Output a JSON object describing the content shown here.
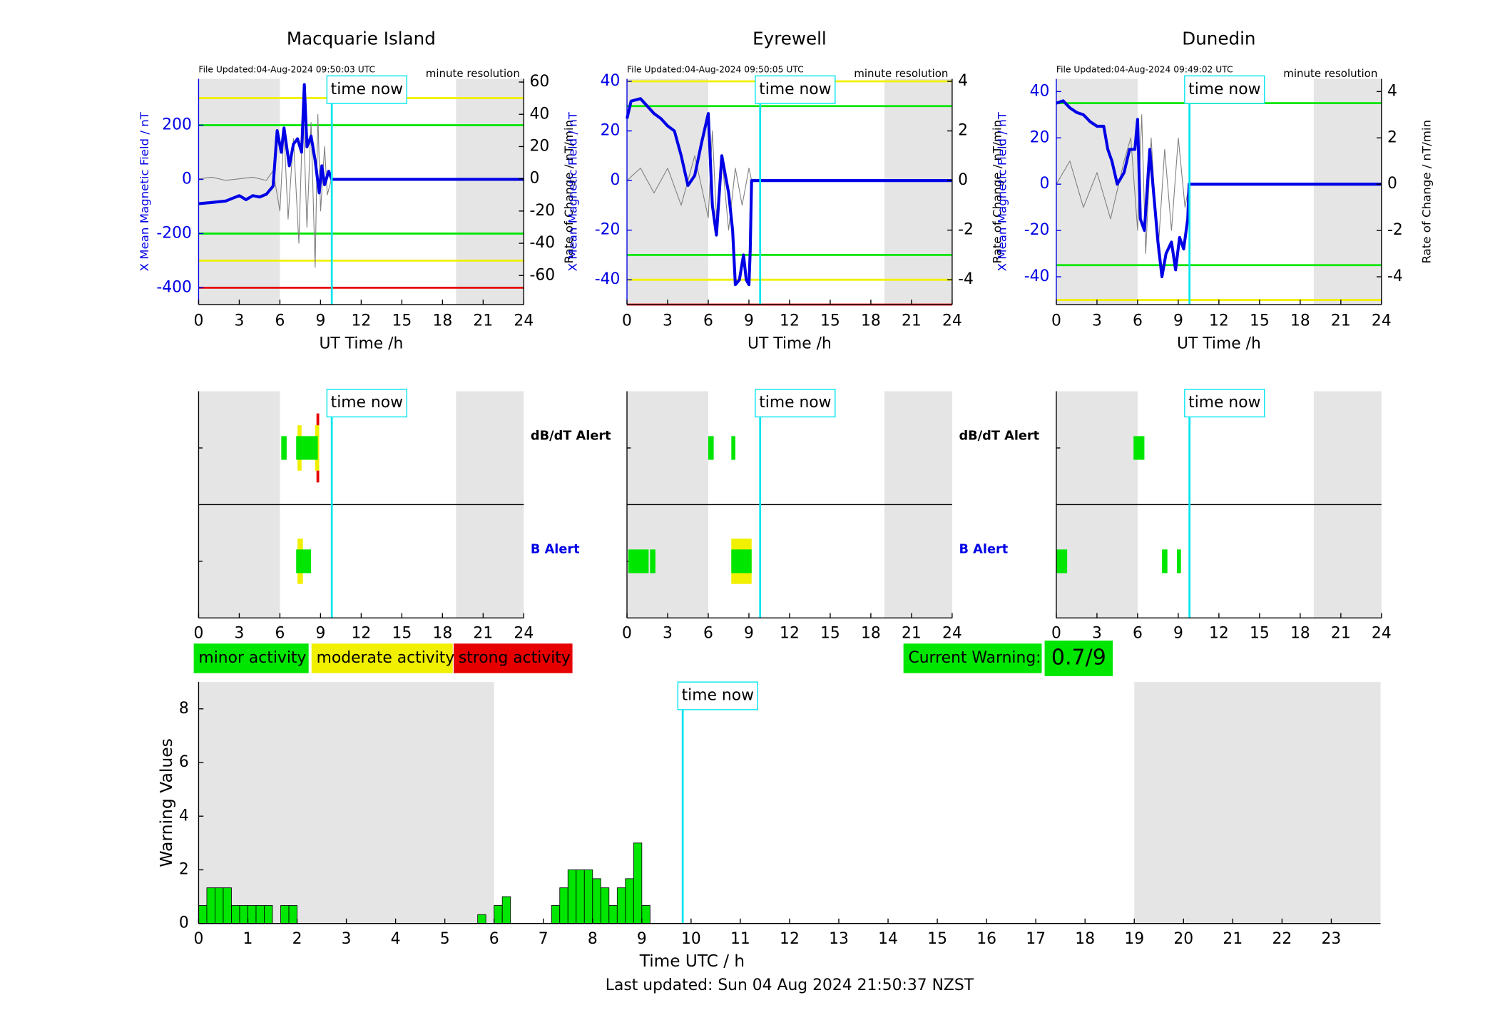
{
  "chart_data": [
    {
      "type": "line",
      "title": "Macquarie Island",
      "file_updated": "File Updated:04-Aug-2024 09:50:03 UTC",
      "resolution": "minute resolution",
      "xlabel": "UT Time /h",
      "ylabel": "X Mean Magnetic Field / nT",
      "y2label": "Rate of Change / nT/min",
      "xlim": [
        0,
        24
      ],
      "xticks": [
        0,
        3,
        6,
        9,
        12,
        15,
        18,
        21,
        24
      ],
      "ylim": [
        -462,
        371
      ],
      "yticks": [
        -400,
        -200,
        0,
        200
      ],
      "y2lim": [
        -78,
        62
      ],
      "y2ticks": [
        -60,
        -40,
        -20,
        0,
        20,
        40,
        60
      ],
      "night": [
        [
          0,
          6
        ],
        [
          19,
          24
        ]
      ],
      "time_now": {
        "label": "time now",
        "value": 9.83
      },
      "thresholds": [
        {
          "value": 300,
          "color": "#f0f000"
        },
        {
          "value": 200,
          "color": "#00e600"
        },
        {
          "value": -200,
          "color": "#00e600"
        },
        {
          "value": -300,
          "color": "#f0f000"
        },
        {
          "value": -400,
          "color": "#e60000"
        }
      ],
      "series": [
        {
          "color": "#808080",
          "axis": "y2",
          "x": [
            0,
            1,
            2,
            3,
            4,
            5,
            5.5,
            6,
            6.3,
            6.6,
            7,
            7.4,
            7.7,
            8,
            8.3,
            8.6,
            8.8,
            9,
            9.3,
            9.5,
            9.8
          ],
          "values": [
            0,
            1,
            -1,
            0,
            1,
            -1,
            5,
            -20,
            30,
            -25,
            25,
            -40,
            45,
            -30,
            35,
            -55,
            40,
            -20,
            20,
            -10,
            0
          ]
        },
        {
          "color": "#0000e6",
          "x": [
            0,
            1,
            2,
            2.5,
            3,
            3.5,
            4,
            4.5,
            5,
            5.5,
            5.8,
            6.1,
            6.3,
            6.7,
            7,
            7.3,
            7.6,
            7.8,
            8,
            8.3,
            8.6,
            8.9,
            9.1,
            9.3,
            9.6,
            9.83,
            24
          ],
          "values": [
            -90,
            -85,
            -80,
            -70,
            -60,
            -75,
            -60,
            -65,
            -55,
            -25,
            180,
            100,
            190,
            50,
            130,
            150,
            100,
            350,
            120,
            160,
            70,
            -50,
            50,
            -20,
            30,
            0,
            0
          ]
        }
      ]
    },
    {
      "type": "line",
      "title": "Eyrewell",
      "file_updated": "File Updated:04-Aug-2024 09:50:05 UTC",
      "resolution": "minute resolution",
      "xlabel": "UT Time /h",
      "ylabel": "X Mean Magnetic Field / nT",
      "y2label": "Rate of Change / nT/min",
      "xlim": [
        0,
        24
      ],
      "xticks": [
        0,
        3,
        6,
        9,
        12,
        15,
        18,
        21,
        24
      ],
      "ylim": [
        -50,
        41
      ],
      "yticks": [
        -40,
        -20,
        0,
        20,
        40
      ],
      "y2lim": [
        -5,
        4.1
      ],
      "y2ticks": [
        -4,
        -2,
        0,
        2,
        4
      ],
      "night": [
        [
          0,
          6
        ],
        [
          19,
          24
        ]
      ],
      "time_now": {
        "label": "time now",
        "value": 9.83
      },
      "thresholds": [
        {
          "value": 40,
          "color": "#f0f000"
        },
        {
          "value": 30,
          "color": "#00e600"
        },
        {
          "value": -30,
          "color": "#00e600"
        },
        {
          "value": -40,
          "color": "#f0f000"
        },
        {
          "value": -50,
          "color": "#e60000"
        }
      ],
      "series": [
        {
          "color": "#808080",
          "axis": "y2",
          "x": [
            0,
            1,
            2,
            3,
            4,
            5,
            6,
            6.3,
            6.6,
            7,
            7.5,
            8,
            8.5,
            9,
            9.2
          ],
          "values": [
            0,
            0.5,
            -0.5,
            0.5,
            -1,
            1,
            -1.5,
            2,
            -1.5,
            1,
            -2,
            0.5,
            -1,
            0.5,
            0
          ]
        },
        {
          "color": "#0000e6",
          "x": [
            0,
            0.3,
            1,
            1.5,
            2,
            2.5,
            3,
            3.5,
            4,
            4.5,
            5,
            5.5,
            6,
            6.3,
            6.6,
            7,
            7.5,
            7.8,
            8,
            8.3,
            8.6,
            8.8,
            9,
            9.1,
            9.2,
            24
          ],
          "values": [
            25,
            32,
            33,
            30,
            27,
            25,
            22,
            20,
            10,
            -2,
            2,
            15,
            27,
            -10,
            -22,
            10,
            -5,
            -20,
            -42,
            -40,
            -30,
            -40,
            -42,
            -28,
            0,
            0
          ]
        }
      ]
    },
    {
      "type": "line",
      "title": "Dunedin",
      "file_updated": "File Updated:04-Aug-2024 09:49:02 UTC",
      "resolution": "minute resolution",
      "xlabel": "UT Time /h",
      "ylabel": "X Mean Magnetic Field / nT",
      "y2label": "Rate of Change / nT/min",
      "xlim": [
        0,
        24
      ],
      "xticks": [
        0,
        3,
        6,
        9,
        12,
        15,
        18,
        21,
        24
      ],
      "ylim": [
        -52,
        45.5
      ],
      "yticks": [
        -40,
        -20,
        0,
        20,
        40
      ],
      "y2lim": [
        -5.2,
        4.55
      ],
      "y2ticks": [
        -4,
        -2,
        0,
        2,
        4
      ],
      "night": [
        [
          0,
          6
        ],
        [
          19,
          24
        ]
      ],
      "time_now": {
        "label": "time now",
        "value": 9.83
      },
      "thresholds": [
        {
          "value": 35,
          "color": "#00e600"
        },
        {
          "value": -35,
          "color": "#00e600"
        },
        {
          "value": -50,
          "color": "#f0f000"
        }
      ],
      "series": [
        {
          "color": "#808080",
          "axis": "y2",
          "x": [
            0,
            1,
            2,
            3,
            4,
            5,
            5.5,
            6,
            6.3,
            6.6,
            7,
            7.5,
            8,
            8.5,
            9,
            9.5,
            9.8
          ],
          "values": [
            0,
            1,
            -1,
            0.5,
            -1.5,
            1,
            2,
            -2,
            3,
            -3,
            2,
            -3,
            1.5,
            -2,
            2,
            -1,
            0
          ]
        },
        {
          "color": "#0000e6",
          "x": [
            0,
            0.5,
            1,
            1.5,
            2,
            2.5,
            3,
            3.5,
            3.8,
            4.1,
            4.5,
            5,
            5.4,
            5.8,
            6,
            6.2,
            6.5,
            6.9,
            7.2,
            7.5,
            7.8,
            8.1,
            8.5,
            8.8,
            9.1,
            9.4,
            9.7,
            9.8,
            24
          ],
          "values": [
            35,
            36,
            33,
            31,
            30,
            27,
            25,
            25,
            15,
            10,
            0,
            5,
            15,
            15,
            28,
            -15,
            -20,
            15,
            -5,
            -25,
            -40,
            -30,
            -25,
            -37,
            -23,
            -28,
            -15,
            0,
            0
          ]
        }
      ]
    },
    {
      "type": "alert",
      "xlim": [
        0,
        24
      ],
      "xticks": [
        0,
        3,
        6,
        9,
        12,
        15,
        18,
        21,
        24
      ],
      "night": [
        [
          0,
          6
        ],
        [
          19,
          24
        ]
      ],
      "time_now": {
        "label": "time now",
        "value": 9.83
      },
      "rows": [
        {
          "name": "dB/dT Alert",
          "name_color": "#000000",
          "segments": [
            {
              "start": 8.7,
              "end": 8.9,
              "level": 2
            },
            {
              "start": 7.3,
              "end": 7.6,
              "level": 1
            },
            {
              "start": 8.6,
              "end": 8.9,
              "level": 1
            },
            {
              "start": 6.1,
              "end": 6.5,
              "level": 0
            },
            {
              "start": 7.2,
              "end": 8.8,
              "level": 0
            }
          ]
        },
        {
          "name": "B Alert",
          "name_color": "#0000e6",
          "segments": [
            {
              "start": 7.3,
              "end": 7.7,
              "level": 1
            },
            {
              "start": 7.2,
              "end": 8.3,
              "level": 0
            }
          ]
        }
      ]
    },
    {
      "type": "alert",
      "xlim": [
        0,
        24
      ],
      "xticks": [
        0,
        3,
        6,
        9,
        12,
        15,
        18,
        21,
        24
      ],
      "night": [
        [
          0,
          6
        ],
        [
          19,
          24
        ]
      ],
      "time_now": {
        "label": "time now",
        "value": 9.83
      },
      "rows": [
        {
          "name": "dB/dT Alert",
          "name_color": "#000000",
          "segments": [
            {
              "start": 6.0,
              "end": 6.4,
              "level": 0
            },
            {
              "start": 7.7,
              "end": 8.0,
              "level": 0
            }
          ]
        },
        {
          "name": "B Alert",
          "name_color": "#0000e6",
          "segments": [
            {
              "start": 7.7,
              "end": 9.2,
              "level": 1
            },
            {
              "start": 0.1,
              "end": 1.6,
              "level": 0
            },
            {
              "start": 1.7,
              "end": 2.1,
              "level": 0
            },
            {
              "start": 7.7,
              "end": 9.2,
              "level": 0
            }
          ]
        }
      ]
    },
    {
      "type": "alert",
      "xlim": [
        0,
        24
      ],
      "xticks": [
        0,
        3,
        6,
        9,
        12,
        15,
        18,
        21,
        24
      ],
      "night": [
        [
          0,
          6
        ],
        [
          19,
          24
        ]
      ],
      "time_now": {
        "label": "time now",
        "value": 9.83
      },
      "rows": [
        {
          "segments": [
            {
              "start": 5.7,
              "end": 6.5,
              "level": 0
            }
          ]
        },
        {
          "segments": [
            {
              "start": 0,
              "end": 0.8,
              "level": 0
            },
            {
              "start": 7.8,
              "end": 8.2,
              "level": 0
            },
            {
              "start": 8.9,
              "end": 9.2,
              "level": 0
            }
          ]
        }
      ]
    },
    {
      "type": "bar",
      "xlabel": "Time UTC / h",
      "ylabel": "Warning Values",
      "color": "#00e600",
      "xlim": [
        0,
        24
      ],
      "xticks": [
        0,
        1,
        2,
        3,
        4,
        5,
        6,
        7,
        8,
        9,
        10,
        11,
        12,
        13,
        14,
        15,
        16,
        17,
        18,
        19,
        20,
        21,
        22,
        23
      ],
      "ylim": [
        0,
        9
      ],
      "yticks": [
        0,
        2,
        4,
        6,
        8
      ],
      "night": [
        [
          0,
          6
        ],
        [
          19,
          24
        ]
      ],
      "time_now": {
        "label": "time now",
        "value": 9.83
      },
      "x": [
        0,
        0.1667,
        0.3333,
        0.5,
        0.6667,
        0.8333,
        1,
        1.1667,
        1.3333,
        1.6667,
        1.8333,
        5.6667,
        6,
        6.1667,
        7.1667,
        7.3333,
        7.5,
        7.6667,
        7.8333,
        8,
        8.1667,
        8.3333,
        8.5,
        8.6667,
        8.8333,
        9
      ],
      "values": [
        0.67,
        1.33,
        1.33,
        1.33,
        0.67,
        0.67,
        0.67,
        0.67,
        0.67,
        0.67,
        0.67,
        0.33,
        0.67,
        1,
        0.67,
        1.33,
        2,
        2,
        2,
        1.67,
        1.33,
        0.67,
        1.33,
        1.67,
        3,
        0.67
      ]
    }
  ],
  "legend": [
    {
      "name": "minor activity",
      "color": "#00e600"
    },
    {
      "name": "moderate activity",
      "color": "#f0f000"
    },
    {
      "name": "strong activity",
      "color": "#e60000"
    }
  ],
  "current_warning": {
    "label": "Current Warning:",
    "value": "0.7/9"
  },
  "last_updated": "Last updated: Sun 04 Aug 2024 21:50:37 NZST"
}
